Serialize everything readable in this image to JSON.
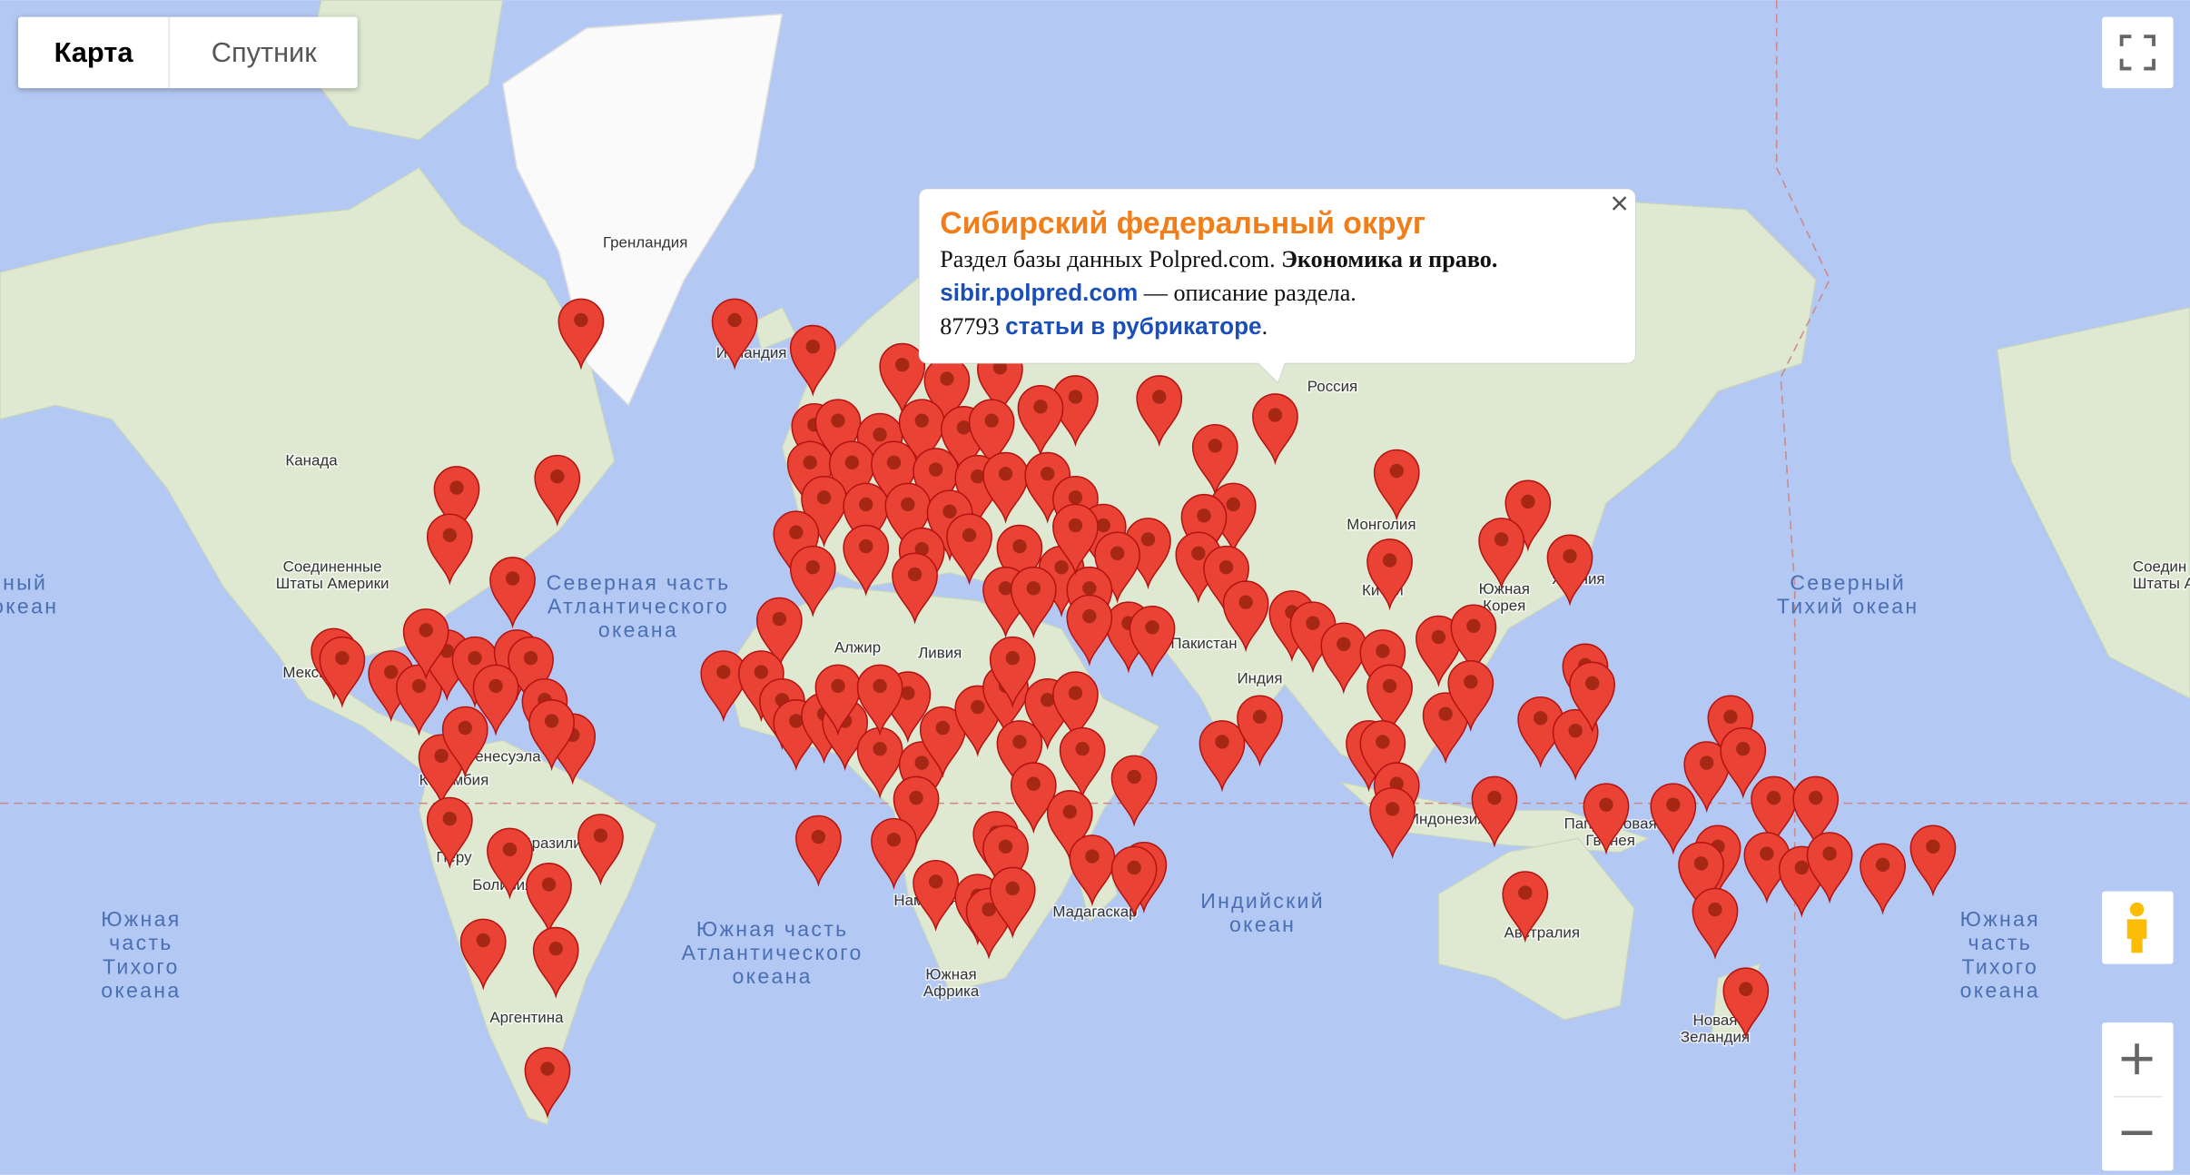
{
  "map_type_control": {
    "map": "Карта",
    "satellite": "Спутник"
  },
  "labels": [
    {
      "lines": [
        "Гренландия"
      ]
    },
    {
      "lines": [
        "Исландия"
      ]
    },
    {
      "lines": [
        "Канада"
      ]
    },
    {
      "lines": [
        "Соединенные",
        "Штаты Америки"
      ]
    },
    {
      "lines": [
        "Мексика"
      ]
    },
    {
      "lines": [
        "Венесуэла"
      ]
    },
    {
      "lines": [
        "Колумбия"
      ]
    },
    {
      "lines": [
        "Перу"
      ]
    },
    {
      "lines": [
        "Бразилия"
      ]
    },
    {
      "lines": [
        "Боливия"
      ]
    },
    {
      "lines": [
        "Аргентина"
      ]
    },
    {
      "lines": [
        "Алжир"
      ]
    },
    {
      "lines": [
        "Ливия"
      ]
    },
    {
      "lines": [
        "Пакистан"
      ]
    },
    {
      "lines": [
        "Индия"
      ]
    },
    {
      "lines": [
        "Китай"
      ]
    },
    {
      "lines": [
        "Монголия"
      ]
    },
    {
      "lines": [
        "Россия"
      ]
    },
    {
      "lines": [
        "Южная",
        "Корея"
      ]
    },
    {
      "lines": [
        "Япония"
      ]
    },
    {
      "lines": [
        "Индонезия"
      ]
    },
    {
      "lines": [
        "Папуа Новая",
        "Гвинея"
      ]
    },
    {
      "lines": [
        "Австралия"
      ]
    },
    {
      "lines": [
        "Новая",
        "Зеландия"
      ]
    },
    {
      "lines": [
        "Мадагаскар"
      ]
    },
    {
      "lines": [
        "Намибия"
      ]
    },
    {
      "lines": [
        "Южная",
        "Африка"
      ]
    },
    {
      "lines": [
        "Северная часть",
        "Атлантического",
        "океана"
      ]
    },
    {
      "lines": [
        "Южная часть",
        "Атлантического",
        "океана"
      ]
    },
    {
      "lines": [
        "Индийский",
        "океан"
      ]
    },
    {
      "lines": [
        "Северный",
        "Тихий океан"
      ]
    },
    {
      "lines": [
        "Южная",
        "часть",
        "Тихого",
        "океана"
      ]
    },
    {
      "lines": [
        "Южная",
        "часть",
        "Тихого",
        "океана"
      ]
    },
    {
      "lines": [
        "ный",
        "океан"
      ]
    },
    {
      "lines": [
        "Соедин",
        "Штаты А"
      ]
    }
  ],
  "info_window": {
    "title": "Сибирский федеральный округ",
    "line1": "Раздел базы данных Polpred.com.",
    "line1_bold": "Экономика и право.",
    "link": "sibir.polpred.com",
    "line2": "— описание раздела.",
    "count": 87793,
    "count_link": "статьи в рубрикаторе",
    "end": "."
  }
}
